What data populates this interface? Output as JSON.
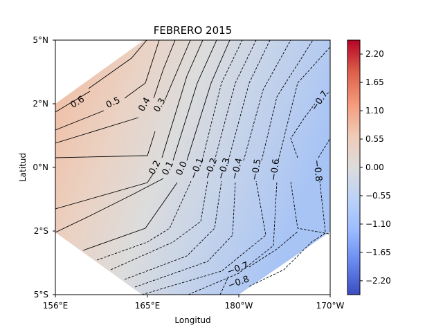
{
  "chart_data": {
    "type": "contour",
    "title": "FEBRERO 2015",
    "xlabel": "Longitud",
    "ylabel": "Latitud",
    "x_ticks": [
      "156°E",
      "165°E",
      "180°W",
      "170°W"
    ],
    "y_ticks": [
      "5°N",
      "2°N",
      "0°N",
      "2°S",
      "5°S"
    ],
    "colorbar": {
      "colormap": "coolwarm",
      "range": [
        -2.47,
        2.47
      ],
      "ticks": [
        "2.20",
        "1.65",
        "1.10",
        "0.55",
        "0.00",
        "−0.55",
        "−1.10",
        "−1.65",
        "−2.20"
      ]
    },
    "contour_levels": [
      0.6,
      0.5,
      0.4,
      0.3,
      0.2,
      0.1,
      0.0,
      -0.1,
      -0.2,
      -0.3,
      -0.4,
      -0.5,
      -0.6,
      -0.7,
      -0.8
    ],
    "contour_labels": [
      "0.6",
      "0.5",
      "0.4",
      "0.3",
      "0.2",
      "0.1",
      "0.0",
      "−0.1",
      "−0.2",
      "−0.3",
      "−0.4",
      "−0.5",
      "−0.6",
      "−0.7",
      "−0.8",
      "−0.7",
      "−0.8"
    ],
    "colors": {
      "warm_corner": "#f0bda0",
      "neutral": "#dcdddd",
      "cool_corner": "#a6c2f5"
    }
  }
}
